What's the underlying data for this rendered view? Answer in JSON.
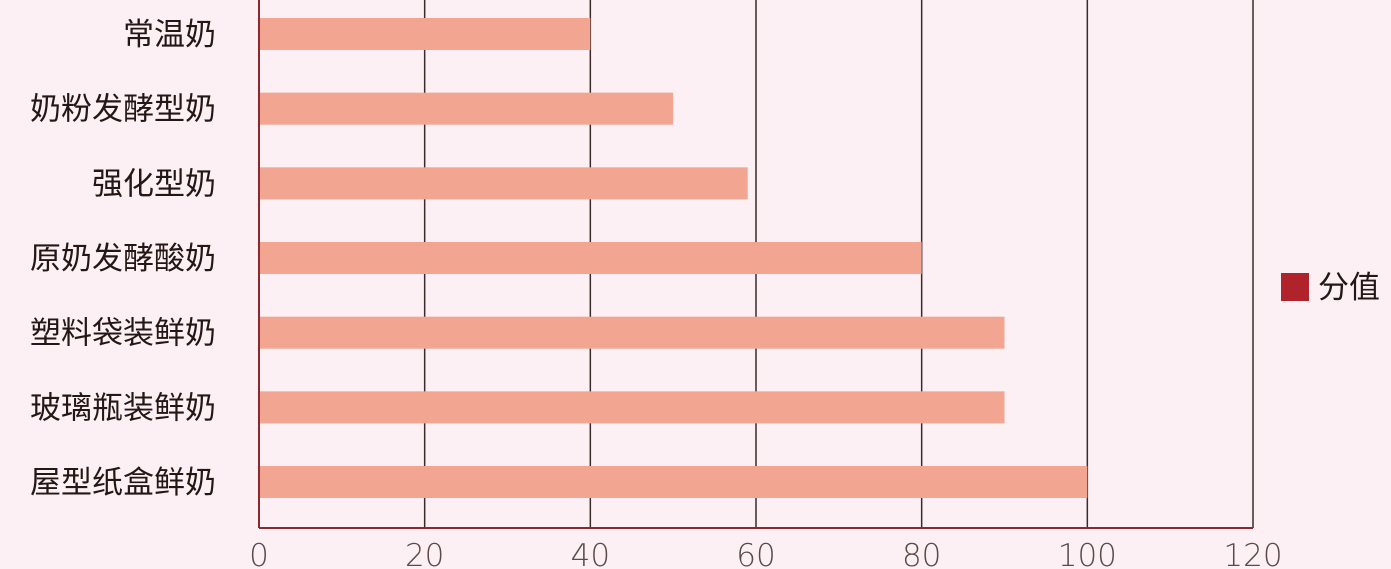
{
  "chart_data": {
    "type": "bar",
    "orientation": "horizontal",
    "categories": [
      "常温奶",
      "奶粉发酵型奶",
      "强化型奶",
      "原奶发酵酸奶",
      "塑料袋装鲜奶",
      "玻璃瓶装鲜奶",
      "屋型纸盒鲜奶"
    ],
    "series": [
      {
        "name": "分值",
        "values": [
          40,
          50,
          59,
          80,
          90,
          90,
          100
        ],
        "color": "#f2a590"
      }
    ],
    "xlim": [
      0,
      120
    ],
    "xticks": [
      "0",
      "20",
      "40",
      "60",
      "80",
      "100",
      "120"
    ],
    "grid": true,
    "legend": {
      "position": "right",
      "swatch_color": "#b0232a"
    },
    "title": "",
    "xlabel": "",
    "ylabel": ""
  }
}
